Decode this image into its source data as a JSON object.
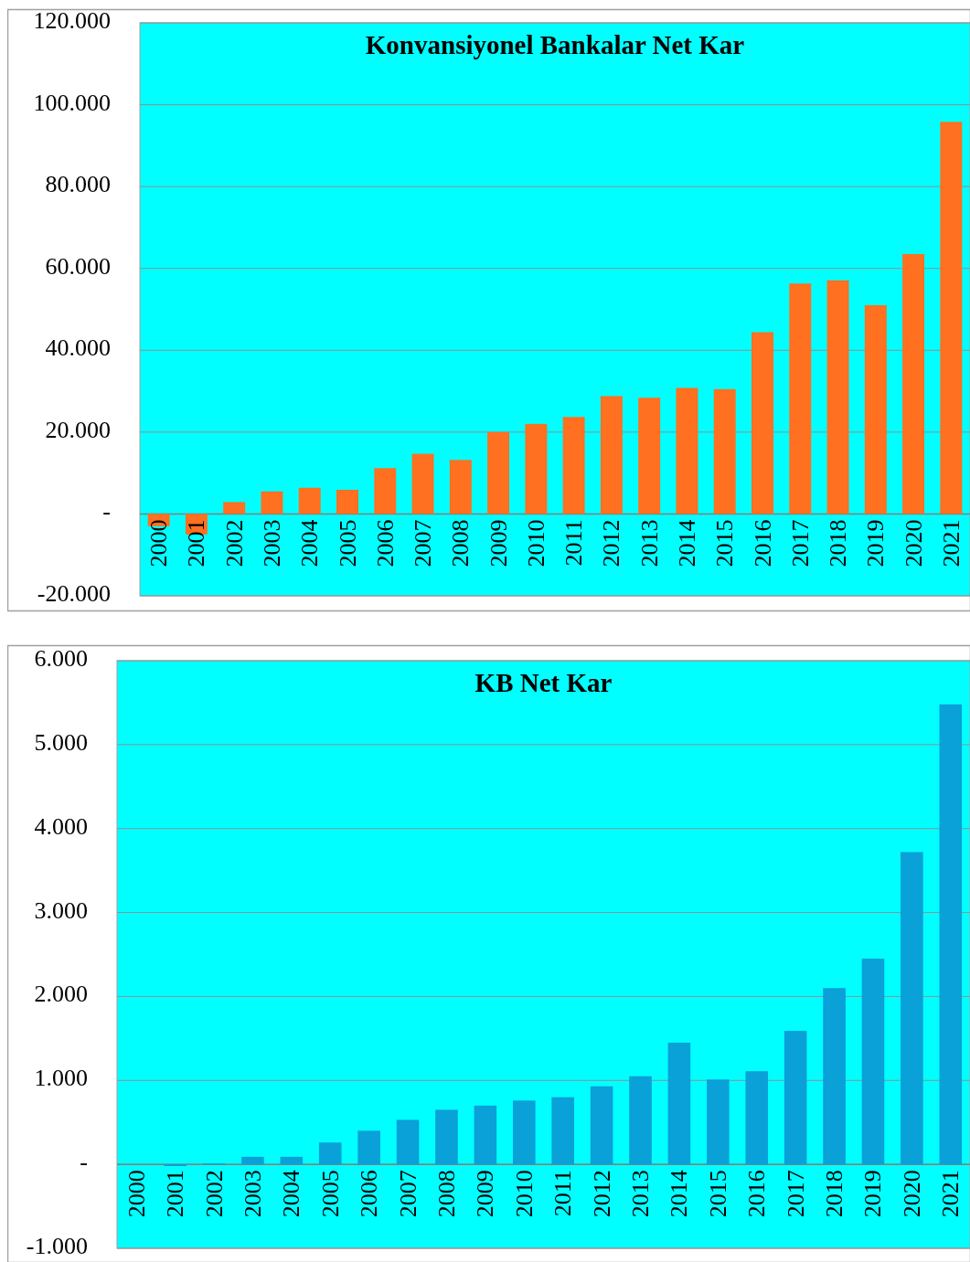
{
  "chart_data": [
    {
      "type": "bar",
      "title": "Konvansiyonel Bankalar Net Kar",
      "categories": [
        "2000",
        "2001",
        "2002",
        "2003",
        "2004",
        "2005",
        "2006",
        "2007",
        "2008",
        "2009",
        "2010",
        "2011",
        "2012",
        "2013",
        "2014",
        "2015",
        "2016",
        "2017",
        "2018",
        "2019",
        "2020",
        "2021"
      ],
      "values": [
        -3000,
        -5000,
        2900,
        5500,
        6400,
        5900,
        11200,
        14700,
        13200,
        20000,
        22000,
        23700,
        28800,
        28400,
        30800,
        30500,
        44400,
        56300,
        57100,
        51000,
        63500,
        95800
      ],
      "color": "#ff7020",
      "ylim": [
        -20000,
        120000
      ],
      "yticks": [
        {
          "value": -20000,
          "label": "-20.000"
        },
        {
          "value": 0,
          "label": "-"
        },
        {
          "value": 20000,
          "label": "20.000"
        },
        {
          "value": 40000,
          "label": "40.000"
        },
        {
          "value": 60000,
          "label": "60.000"
        },
        {
          "value": 80000,
          "label": "80.000"
        },
        {
          "value": 100000,
          "label": "100.000"
        },
        {
          "value": 120000,
          "label": "120.000"
        }
      ],
      "grid": "y"
    },
    {
      "type": "bar",
      "title": "KB Net Kar",
      "categories": [
        "2000",
        "2001",
        "2002",
        "2003",
        "2004",
        "2005",
        "2006",
        "2007",
        "2008",
        "2009",
        "2010",
        "2011",
        "2012",
        "2013",
        "2014",
        "2015",
        "2016",
        "2017",
        "2018",
        "2019",
        "2020",
        "2021"
      ],
      "values": [
        0,
        -20,
        10,
        90,
        90,
        260,
        400,
        530,
        650,
        700,
        760,
        800,
        930,
        1050,
        1450,
        1010,
        1110,
        1590,
        2100,
        2450,
        3720,
        5480
      ],
      "color": "#0aa0d8",
      "ylim": [
        -1000,
        6000
      ],
      "yticks": [
        {
          "value": -1000,
          "label": "-1.000"
        },
        {
          "value": 0,
          "label": "-"
        },
        {
          "value": 1000,
          "label": "1.000"
        },
        {
          "value": 2000,
          "label": "2.000"
        },
        {
          "value": 3000,
          "label": "3.000"
        },
        {
          "value": 4000,
          "label": "4.000"
        },
        {
          "value": 5000,
          "label": "5.000"
        },
        {
          "value": 6000,
          "label": "6.000"
        }
      ],
      "grid": "y"
    }
  ]
}
